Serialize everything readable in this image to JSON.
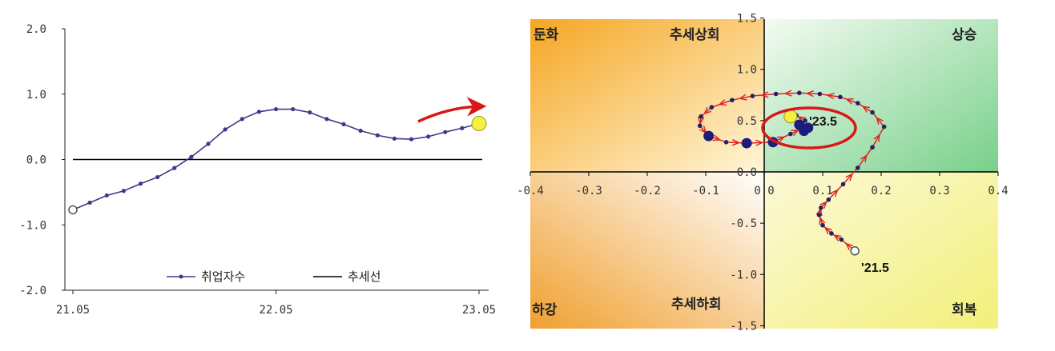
{
  "chart_data": [
    {
      "type": "line",
      "x_tick_labels": [
        "21.05",
        "22.05",
        "23.05"
      ],
      "y_tick_labels": [
        "2.0",
        "1.0",
        "0.0",
        "-1.0",
        "-2.0"
      ],
      "ylim": [
        -2.0,
        2.0
      ],
      "grid": false,
      "legend_placement": "bottom-center",
      "series": [
        {
          "name": "취업자수",
          "color": "#3a3a8c",
          "x_index": [
            0,
            1,
            2,
            3,
            4,
            5,
            6,
            7,
            8,
            9,
            10,
            11,
            12,
            13,
            14,
            15,
            16,
            17,
            18,
            19,
            20,
            21,
            22,
            23,
            24
          ],
          "values": [
            -0.77,
            -0.66,
            -0.55,
            -0.48,
            -0.37,
            -0.27,
            -0.13,
            0.04,
            0.24,
            0.46,
            0.62,
            0.73,
            0.77,
            0.77,
            0.72,
            0.62,
            0.54,
            0.44,
            0.37,
            0.32,
            0.31,
            0.35,
            0.42,
            0.48,
            0.55
          ]
        },
        {
          "name": "추세선",
          "color": "#000000",
          "x_index": [
            0,
            24
          ],
          "values": [
            0,
            0
          ]
        }
      ]
    },
    {
      "type": "scatter",
      "x_tick_labels": [
        "-0.4",
        "-0.3",
        "-0.2",
        "-0.1",
        "0.0",
        "0.1",
        "0.2",
        "0.3",
        "0.4"
      ],
      "y_tick_labels": [
        "1.5",
        "1.0",
        "0.5",
        "0.0",
        "-0.5",
        "-1.0",
        "-1.5"
      ],
      "xlim": [
        -0.4,
        0.4
      ],
      "ylim": [
        -1.5,
        1.5
      ],
      "quadrants": {
        "top_left": "둔화",
        "top_left_inner": "추세상회",
        "top_right": "상승",
        "bottom_left": "하강",
        "bottom_left_inner": "추세하회",
        "bottom_right": "회복"
      },
      "annotations": {
        "start": "'21.5",
        "end": "'23.5"
      },
      "points": [
        {
          "x": 0.155,
          "y": -0.77
        },
        {
          "x": 0.132,
          "y": -0.66
        },
        {
          "x": 0.115,
          "y": -0.6
        },
        {
          "x": 0.1,
          "y": -0.52
        },
        {
          "x": 0.094,
          "y": -0.42
        },
        {
          "x": 0.097,
          "y": -0.35
        },
        {
          "x": 0.11,
          "y": -0.27
        },
        {
          "x": 0.135,
          "y": -0.12
        },
        {
          "x": 0.16,
          "y": 0.04
        },
        {
          "x": 0.185,
          "y": 0.24
        },
        {
          "x": 0.205,
          "y": 0.44
        },
        {
          "x": 0.185,
          "y": 0.58
        },
        {
          "x": 0.16,
          "y": 0.67
        },
        {
          "x": 0.13,
          "y": 0.73
        },
        {
          "x": 0.095,
          "y": 0.76
        },
        {
          "x": 0.06,
          "y": 0.77
        },
        {
          "x": 0.02,
          "y": 0.76
        },
        {
          "x": -0.02,
          "y": 0.74
        },
        {
          "x": -0.055,
          "y": 0.7
        },
        {
          "x": -0.09,
          "y": 0.63
        },
        {
          "x": -0.108,
          "y": 0.54
        },
        {
          "x": -0.11,
          "y": 0.45
        },
        {
          "x": -0.095,
          "y": 0.35
        },
        {
          "x": -0.065,
          "y": 0.29
        },
        {
          "x": -0.03,
          "y": 0.28
        },
        {
          "x": 0.015,
          "y": 0.29
        },
        {
          "x": 0.045,
          "y": 0.37
        },
        {
          "x": 0.063,
          "y": 0.42
        },
        {
          "x": 0.07,
          "y": 0.5
        },
        {
          "x": 0.055,
          "y": 0.55
        }
      ],
      "big_points": [
        {
          "x": -0.095,
          "y": 0.35
        },
        {
          "x": -0.03,
          "y": 0.28
        },
        {
          "x": 0.015,
          "y": 0.29
        },
        {
          "x": 0.068,
          "y": 0.4
        },
        {
          "x": 0.06,
          "y": 0.46
        },
        {
          "x": 0.075,
          "y": 0.43
        }
      ],
      "start_point": {
        "x": 0.155,
        "y": -0.77
      },
      "end_point": {
        "x": 0.045,
        "y": 0.54
      }
    }
  ]
}
